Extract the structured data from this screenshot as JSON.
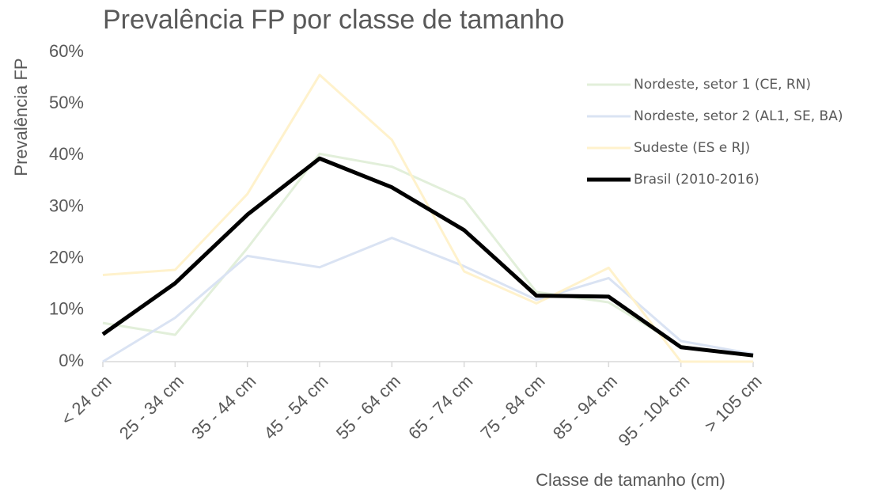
{
  "chart_data": {
    "type": "line",
    "title": "Prevalência FP por classe de tamanho",
    "x_label": "Classe de tamanho (cm)",
    "y_label": "Prevalência FP",
    "categories": [
      "< 24 cm",
      "25 - 34 cm",
      "35 - 44 cm",
      "45 - 54 cm",
      "55 - 64 cm",
      "65 - 74 cm",
      "75 - 84 cm",
      "85 - 94 cm",
      "95 - 104 cm",
      "> 105 cm"
    ],
    "series": [
      {
        "name": "Nordeste, setor 1 (CE, RN)",
        "color": "#e2efda",
        "width": 3,
        "values": [
          7.5,
          5.2,
          22,
          40.3,
          37.8,
          31.5,
          13.5,
          11.5,
          3,
          1
        ]
      },
      {
        "name": "Nordeste, setor 2 (AL1, SE, BA)",
        "color": "#dae3f3",
        "width": 3,
        "values": [
          0,
          8.5,
          20.5,
          18.3,
          24,
          18.5,
          12,
          16.2,
          4,
          1.5
        ]
      },
      {
        "name": "Sudeste (ES e RJ)",
        "color": "#fff2cc",
        "width": 3,
        "values": [
          16.8,
          17.8,
          32.5,
          55.6,
          43,
          17.5,
          11.3,
          18.2,
          0,
          0
        ]
      },
      {
        "name": "Brasil (2010-2016)",
        "color": "#000000",
        "width": 5,
        "values": [
          5.3,
          15.2,
          28.5,
          39.4,
          33.8,
          25.5,
          12.8,
          12.6,
          2.8,
          1.2
        ]
      }
    ],
    "ylim": [
      0,
      60
    ],
    "yticks": [
      {
        "value": 0,
        "label": "0%"
      },
      {
        "value": 10,
        "label": "10%"
      },
      {
        "value": 20,
        "label": "20%"
      },
      {
        "value": 30,
        "label": "30%"
      },
      {
        "value": 40,
        "label": "40%"
      },
      {
        "value": 50,
        "label": "50%"
      },
      {
        "value": 60,
        "label": "60%"
      }
    ],
    "grid": false,
    "legend": "top-right"
  }
}
